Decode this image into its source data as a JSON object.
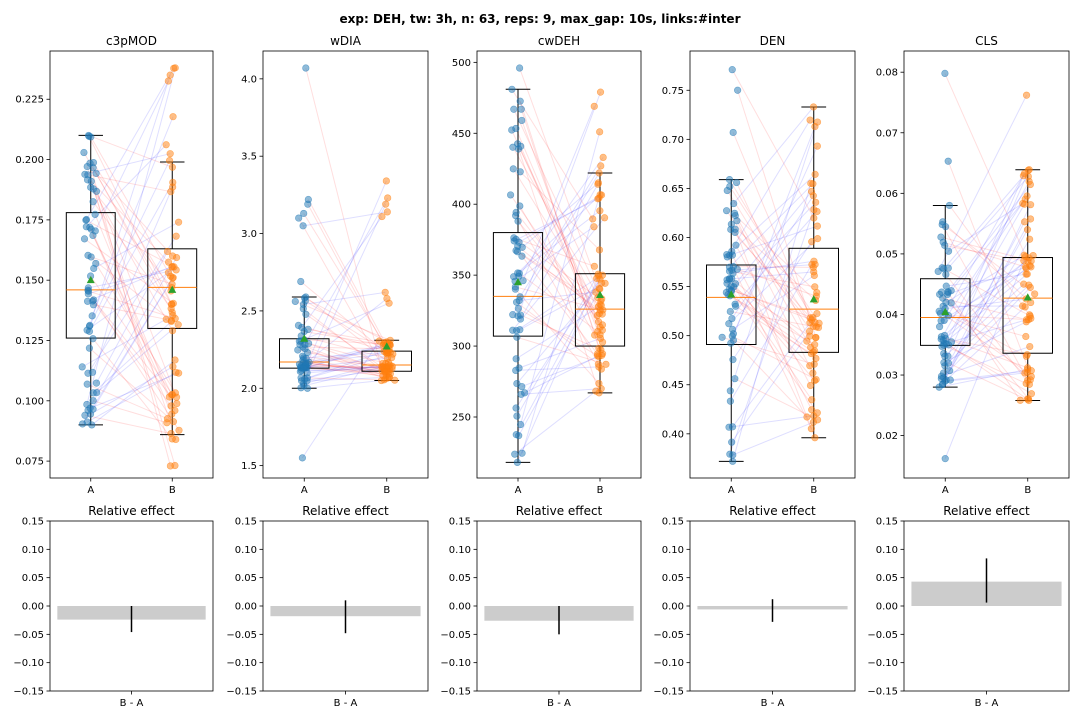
{
  "figure": {
    "suptitle": "exp: DEH, tw: 3h, n: 63, reps: 9, max_gap: 10s, links:#inter"
  },
  "colors": {
    "group_a": "#1f77b4",
    "group_b": "#ff7f0e",
    "median": "#ff7f0e",
    "mean_marker": "#2ca02c",
    "link_up": "#0000ff",
    "link_down": "#ff0000",
    "effect_bar": "#cccccc",
    "effect_err": "#000000"
  },
  "chart_data": [
    {
      "type": "box",
      "title": "c3pMOD",
      "categories": [
        "A",
        "B"
      ],
      "ylim": [
        0.068,
        0.245
      ],
      "yticks": [
        0.075,
        0.1,
        0.125,
        0.15,
        0.175,
        0.2,
        0.225
      ],
      "ytick_labels": [
        "0.075",
        "0.100",
        "0.125",
        "0.150",
        "0.175",
        "0.200",
        "0.225"
      ],
      "series": [
        {
          "name": "A",
          "min": 0.09,
          "q1": 0.126,
          "median": 0.146,
          "q3": 0.178,
          "max": 0.21,
          "mean": 0.15,
          "range": [
            0.09,
            0.21
          ],
          "outliers": [
            0.094
          ]
        },
        {
          "name": "B",
          "min": 0.086,
          "q1": 0.13,
          "median": 0.147,
          "q3": 0.163,
          "max": 0.199,
          "mean": 0.146,
          "range": [
            0.073,
            0.238
          ],
          "outliers": []
        }
      ]
    },
    {
      "type": "box",
      "title": "wDIA",
      "categories": [
        "A",
        "B"
      ],
      "ylim": [
        1.42,
        4.18
      ],
      "yticks": [
        1.5,
        2.0,
        2.5,
        3.0,
        3.5,
        4.0
      ],
      "ytick_labels": [
        "1.5",
        "2.0",
        "2.5",
        "3.0",
        "3.5",
        "4.0"
      ],
      "series": [
        {
          "name": "A",
          "min": 2.0,
          "q1": 2.13,
          "median": 2.17,
          "q3": 2.32,
          "max": 2.59,
          "mean": 2.32,
          "range": [
            2.0,
            2.59
          ],
          "outliers": [
            1.55,
            2.69,
            3.05,
            3.1,
            3.13,
            3.19,
            3.22,
            4.07
          ]
        },
        {
          "name": "B",
          "min": 2.05,
          "q1": 2.11,
          "median": 2.15,
          "q3": 2.24,
          "max": 2.31,
          "mean": 2.27,
          "range": [
            2.05,
            2.31
          ],
          "outliers": [
            2.55,
            2.58,
            2.62,
            3.11,
            3.14,
            3.19,
            3.23,
            3.34
          ]
        }
      ]
    },
    {
      "type": "box",
      "title": "cwDEH",
      "categories": [
        "A",
        "B"
      ],
      "ylim": [
        207,
        508
      ],
      "yticks": [
        250,
        300,
        350,
        400,
        450,
        500
      ],
      "ytick_labels": [
        "250",
        "300",
        "350",
        "400",
        "450",
        "500"
      ],
      "series": [
        {
          "name": "A",
          "min": 218,
          "q1": 307,
          "median": 335,
          "q3": 380,
          "max": 481,
          "mean": 345,
          "range": [
            218,
            481
          ],
          "outliers": [
            496
          ]
        },
        {
          "name": "B",
          "min": 267,
          "q1": 300,
          "median": 326,
          "q3": 351,
          "max": 422,
          "mean": 336,
          "range": [
            267,
            422
          ],
          "outliers": [
            427,
            433,
            451,
            469,
            479
          ]
        }
      ]
    },
    {
      "type": "box",
      "title": "DEN",
      "categories": [
        "A",
        "B"
      ],
      "ylim": [
        0.355,
        0.79
      ],
      "yticks": [
        0.4,
        0.45,
        0.5,
        0.55,
        0.6,
        0.65,
        0.7,
        0.75
      ],
      "ytick_labels": [
        "0.40",
        "0.45",
        "0.50",
        "0.55",
        "0.60",
        "0.65",
        "0.70",
        "0.75"
      ],
      "series": [
        {
          "name": "A",
          "min": 0.372,
          "q1": 0.491,
          "median": 0.539,
          "q3": 0.572,
          "max": 0.659,
          "mean": 0.542,
          "range": [
            0.372,
            0.659
          ],
          "outliers": [
            0.707,
            0.75,
            0.771
          ]
        },
        {
          "name": "B",
          "min": 0.396,
          "q1": 0.483,
          "median": 0.527,
          "q3": 0.589,
          "max": 0.733,
          "mean": 0.537,
          "range": [
            0.396,
            0.733
          ],
          "outliers": []
        }
      ]
    },
    {
      "type": "box",
      "title": "CLS",
      "categories": [
        "A",
        "B"
      ],
      "ylim": [
        0.013,
        0.0835
      ],
      "yticks": [
        0.02,
        0.03,
        0.04,
        0.05,
        0.06,
        0.07,
        0.08
      ],
      "ytick_labels": [
        "0.02",
        "0.03",
        "0.04",
        "0.05",
        "0.06",
        "0.07",
        "0.08"
      ],
      "series": [
        {
          "name": "A",
          "min": 0.028,
          "q1": 0.0349,
          "median": 0.0395,
          "q3": 0.0459,
          "max": 0.058,
          "mean": 0.0404,
          "range": [
            0.028,
            0.058
          ],
          "outliers": [
            0.0162,
            0.0653,
            0.0798
          ]
        },
        {
          "name": "B",
          "min": 0.0258,
          "q1": 0.0336,
          "median": 0.0427,
          "q3": 0.0494,
          "max": 0.0639,
          "mean": 0.0428,
          "range": [
            0.0258,
            0.0639
          ],
          "outliers": [
            0.0762
          ]
        }
      ]
    },
    {
      "type": "bar",
      "title": "Relative effect",
      "categories": [
        "B - A"
      ],
      "ylim": [
        -0.15,
        0.15
      ],
      "yticks": [
        -0.15,
        -0.1,
        -0.05,
        0.0,
        0.05,
        0.1,
        0.15
      ],
      "ytick_labels": [
        "−0.15",
        "−0.10",
        "−0.05",
        "0.00",
        "0.05",
        "0.10",
        "0.15"
      ],
      "series": [
        {
          "panel": 1,
          "value": -0.024,
          "err_low": -0.046,
          "err_high": 0.0
        },
        {
          "panel": 2,
          "value": -0.018,
          "err_low": -0.048,
          "err_high": 0.01
        },
        {
          "panel": 3,
          "value": -0.026,
          "err_low": -0.05,
          "err_high": 0.0
        },
        {
          "panel": 4,
          "value": -0.006,
          "err_low": -0.028,
          "err_high": 0.012
        },
        {
          "panel": 5,
          "value": 0.043,
          "err_low": 0.006,
          "err_high": 0.084
        }
      ]
    }
  ]
}
